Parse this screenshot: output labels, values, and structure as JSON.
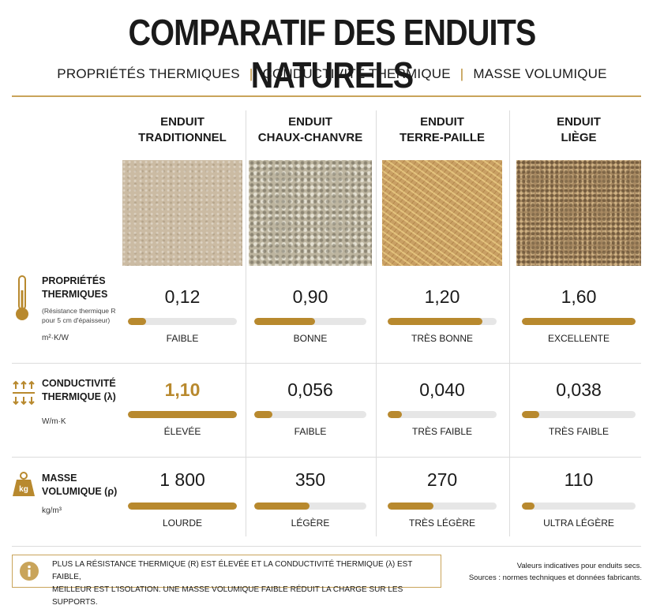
{
  "header": {
    "title": "COMPARATIF DES ENDUITS NATURELS",
    "subtitle": [
      "PROPRIÉTÉS THERMIQUES",
      "CONDUCTIVITÉ THERMIQUE",
      "MASSE VOLUMIQUE"
    ]
  },
  "table": {
    "columns": [
      [
        "ENDUIT",
        "TRADITIONNEL"
      ],
      [
        "ENDUIT",
        "CHAUX-CHANVRE"
      ],
      [
        "ENDUIT",
        "TERRE-PAILLE"
      ],
      [
        "ENDUIT",
        "LIÈGE"
      ]
    ],
    "rows": [
      {
        "label": [
          "PROPRIÉTÉS",
          "THERMIQUES"
        ],
        "note": [
          "(Résistance thermique R",
          "pour 5 cm d'épaisseur)"
        ],
        "unit": "m²·K/W",
        "cells": [
          {
            "value": "0,12",
            "gauge": 17,
            "rating": "FAIBLE"
          },
          {
            "value": "0,90",
            "gauge": 54,
            "rating": "BONNE"
          },
          {
            "value": "1,20",
            "gauge": 87,
            "rating": "TRÈS BONNE"
          },
          {
            "value": "1,60",
            "gauge": 100,
            "rating": "EXCELLENTE"
          }
        ]
      },
      {
        "label": [
          "CONDUCTIVITÉ",
          "THERMIQUE (λ)"
        ],
        "unit": "W/m·K",
        "cells": [
          {
            "value": "1,10",
            "gauge": 100,
            "rating": "ÉLEVÉE",
            "highlight": true
          },
          {
            "value": "0,056",
            "gauge": 16,
            "rating": "FAIBLE"
          },
          {
            "value": "0,040",
            "gauge": 13,
            "rating": "TRÈS FAIBLE"
          },
          {
            "value": "0,038",
            "gauge": 15,
            "rating": "TRÈS FAIBLE"
          }
        ]
      },
      {
        "label": [
          "MASSE",
          "VOLUMIQUE (ρ)"
        ],
        "unit": "kg/m³",
        "cells": [
          {
            "value": "1 800",
            "gauge": 100,
            "rating": "LOURDE"
          },
          {
            "value": "350",
            "gauge": 49,
            "rating": "LÉGÈRE"
          },
          {
            "value": "270",
            "gauge": 42,
            "rating": "TRÈS LÉGÈRE"
          },
          {
            "value": "110",
            "gauge": 11,
            "rating": "ULTRA LÉGÈRE"
          }
        ]
      }
    ]
  },
  "footer": {
    "info": [
      "PLUS LA RÉSISTANCE THERMIQUE (R) EST ÉLEVÉE ET LA CONDUCTIVITÉ THERMIQUE (λ) EST FAIBLE,",
      "MEILLEUR EST L'ISOLATION. UNE MASSE VOLUMIQUE FAIBLE RÉDUIT LA CHARGE SUR LES SUPPORTS."
    ],
    "notes": [
      "Valeurs indicatives pour enduits secs.",
      "Sources : normes techniques et données fabricants."
    ]
  }
}
